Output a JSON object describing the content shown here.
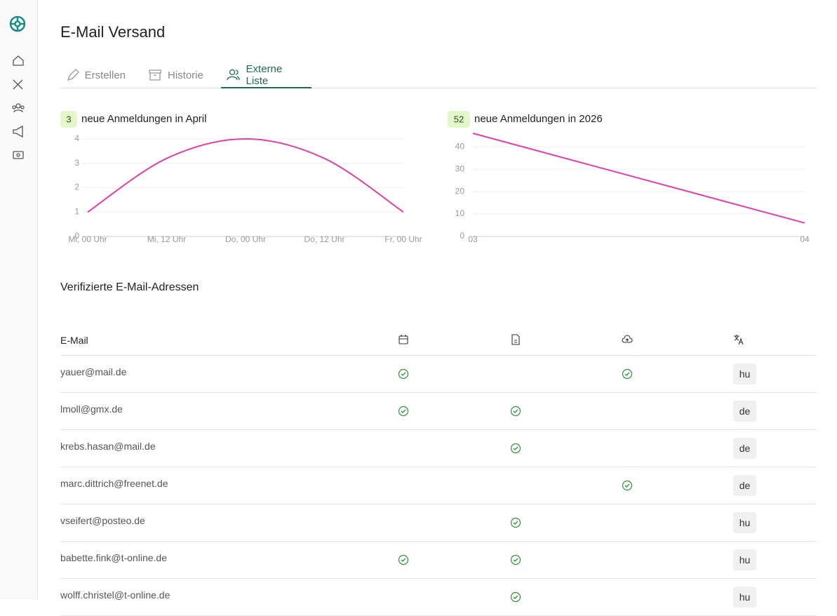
{
  "header": {
    "title": "E-Mail Versand"
  },
  "tabs": [
    "Erstellen",
    "Historie",
    "Externe Liste"
  ],
  "active_tab": 2,
  "chart_data": [
    {
      "type": "line",
      "count": 3,
      "title": "neue Anmeldungen in April",
      "categories": [
        "Mi, 00 Uhr",
        "Mi, 12 Uhr",
        "Do, 00 Uhr",
        "Do, 12 Uhr",
        "Fr, 00 Uhr"
      ],
      "values": [
        1,
        3.2,
        4,
        3.2,
        1
      ],
      "color": "#e23fa7",
      "ylim": [
        0,
        4
      ],
      "yticks": [
        0,
        1,
        2,
        3,
        4
      ],
      "grid": true
    },
    {
      "type": "line",
      "count": 52,
      "title": "neue Anmeldungen in 2026",
      "categories": [
        "03",
        "04"
      ],
      "values": [
        46,
        6
      ],
      "color": "#e23fa7",
      "ylim": [
        0,
        46
      ],
      "yticks": [
        0,
        10,
        20,
        30,
        40
      ],
      "grid": true
    }
  ],
  "table": {
    "title": "Verifizierte E-Mail-Adressen",
    "header": [
      "E-Mail"
    ],
    "rows": [
      [
        "yauer@mail.de",
        true,
        false,
        true,
        "hu"
      ],
      [
        "lmoll@gmx.de",
        true,
        true,
        false,
        "de"
      ],
      [
        "krebs.hasan@mail.de",
        false,
        true,
        false,
        "de"
      ],
      [
        "marc.dittrich@freenet.de",
        false,
        false,
        true,
        "de"
      ],
      [
        "vseifert@posteo.de",
        false,
        true,
        false,
        "hu"
      ],
      [
        "babette.fink@t-online.de",
        true,
        true,
        false,
        "hu"
      ],
      [
        "wolff.christel@t-online.de",
        false,
        true,
        false,
        "hu"
      ]
    ]
  }
}
